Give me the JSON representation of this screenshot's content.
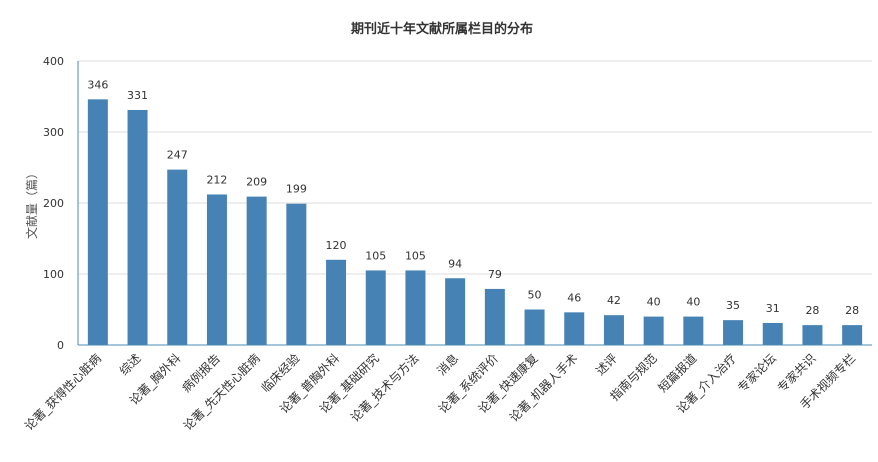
{
  "chart_data": {
    "type": "bar",
    "title": "期刊近十年文献所属栏目的分布",
    "xlabel": "",
    "ylabel": "文献量（篇）",
    "ylim": [
      0,
      400
    ],
    "yticks": [
      0,
      100,
      200,
      300,
      400
    ],
    "grid": true,
    "legend": "none",
    "categories": [
      "论著_获得性心脏病",
      "综述",
      "论著_胸外科",
      "病例报告",
      "论著_先天性心脏病",
      "临床经验",
      "论著_普胸外科",
      "论著_基础研究",
      "论著_技术与方法",
      "消息",
      "论著_系统评价",
      "论著_快速康复",
      "论著_机器人手术",
      "述评",
      "指南与规范",
      "短篇报道",
      "论著_介入治疗",
      "专家论坛",
      "专家共识",
      "手术视频专栏"
    ],
    "values": [
      346,
      331,
      247,
      212,
      209,
      199,
      120,
      105,
      105,
      94,
      79,
      50,
      46,
      42,
      40,
      40,
      35,
      31,
      28,
      28
    ],
    "colors": {
      "bar": "#4682b4",
      "axis": "#4b8bb5",
      "grid": "#dddddd"
    }
  }
}
